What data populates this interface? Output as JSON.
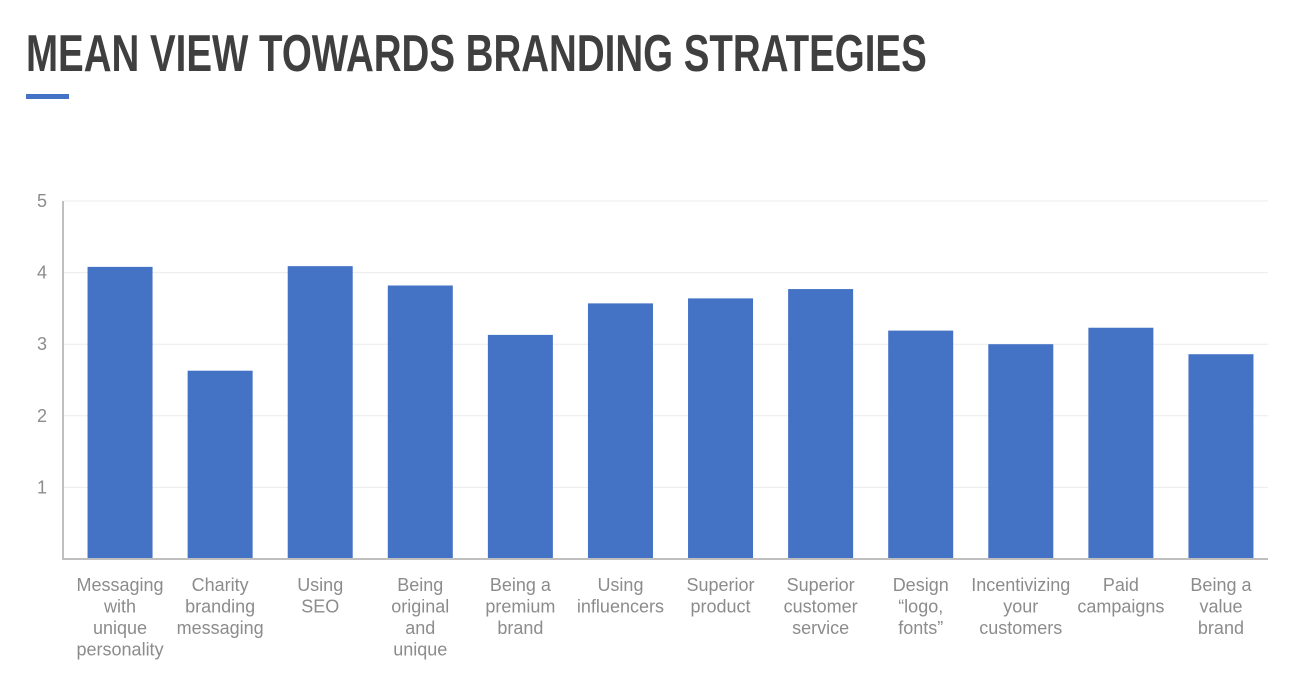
{
  "page": {
    "title": "MEAN VIEW TOWARDS BRANDING STRATEGIES"
  },
  "colors": {
    "bar": "#4472c4",
    "accent": "#4472c4",
    "title": "#3f3f3f",
    "axis": "#bfbfbf",
    "grid": "#ececec",
    "label": "#8c8c8c"
  },
  "chart_data": {
    "type": "bar",
    "title": "MEAN VIEW TOWARDS BRANDING STRATEGIES",
    "xlabel": "",
    "ylabel": "",
    "ylim": [
      0,
      5
    ],
    "yticks": [
      1,
      2,
      3,
      4,
      5
    ],
    "grid": true,
    "legend": "none",
    "categories": [
      "Messaging with unique personality",
      "Charity branding messaging",
      "Using SEO",
      "Being original and unique",
      "Being a premium brand",
      "Using influencers",
      "Superior product",
      "Superior customer service",
      "Design “logo, fonts”",
      "Incentivizing your customers",
      "Paid campaigns",
      "Being a value brand"
    ],
    "category_lines": [
      [
        "Messaging",
        "with",
        "unique",
        "personality"
      ],
      [
        "Charity",
        "branding",
        "messaging"
      ],
      [
        "Using",
        "SEO"
      ],
      [
        "Being",
        "original",
        "and",
        "unique"
      ],
      [
        "Being a",
        "premium",
        "brand"
      ],
      [
        "Using",
        "influencers"
      ],
      [
        "Superior",
        "product"
      ],
      [
        "Superior",
        "customer",
        "service"
      ],
      [
        "Design",
        "“logo,",
        "fonts”"
      ],
      [
        "Incentivizing",
        "your",
        "customers"
      ],
      [
        "Paid",
        "campaigns"
      ],
      [
        "Being a",
        "value",
        "brand"
      ]
    ],
    "values": [
      4.08,
      2.63,
      4.09,
      3.82,
      3.13,
      3.57,
      3.64,
      3.77,
      3.19,
      3.0,
      3.23,
      2.86
    ]
  }
}
